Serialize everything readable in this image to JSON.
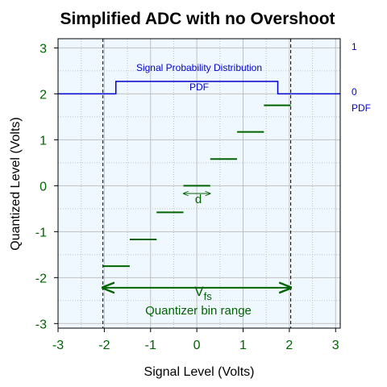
{
  "chart_data": {
    "type": "line",
    "title": "Simplified ADC with no Overshoot",
    "xlabel": "Signal Level (Volts)",
    "ylabel": "Quantized Level (Volts)",
    "xlim": [
      -3.0,
      3.1
    ],
    "ylim": [
      -3.1,
      3.2
    ],
    "xticks": [
      -3,
      -2,
      -1,
      0,
      1,
      2,
      3
    ],
    "yticks": [
      -3,
      -2,
      -1,
      0,
      1,
      2,
      3
    ],
    "grid": true,
    "background_color": "#f0f8ff",
    "quantizer_steps": {
      "color": "#006400",
      "segments": [
        {
          "x": [
            -2.03,
            -1.45
          ],
          "y": -1.75
        },
        {
          "x": [
            -1.45,
            -0.87
          ],
          "y": -1.17
        },
        {
          "x": [
            -0.87,
            -0.29
          ],
          "y": -0.58
        },
        {
          "x": [
            -0.29,
            0.29
          ],
          "y": 0.0
        },
        {
          "x": [
            0.29,
            0.87
          ],
          "y": 0.58
        },
        {
          "x": [
            0.87,
            1.45
          ],
          "y": 1.17
        },
        {
          "x": [
            1.45,
            2.03
          ],
          "y": 1.75
        }
      ]
    },
    "pdf": {
      "color": "#0000cd",
      "label": "PDF",
      "title": "Signal Probability Distribution",
      "baseline_y": 2.0,
      "top_y": 2.27,
      "x": [
        -3.0,
        -1.75,
        -1.75,
        1.75,
        1.75,
        3.1
      ],
      "level": [
        0,
        0,
        1,
        1,
        0,
        0
      ],
      "right_axis": {
        "ticks": [
          {
            "value": 1,
            "label": "1"
          },
          {
            "value": 0,
            "label": "0"
          }
        ],
        "label": "PDF"
      }
    },
    "vertical_dashed_lines": [
      -2.03,
      2.03
    ],
    "annotations": {
      "step_size": {
        "label": "d",
        "x": [
          -0.29,
          0.29
        ],
        "y": -0.17
      },
      "full_scale": {
        "label": "V",
        "subscript": "fs",
        "caption": "Quantizer bin range",
        "x": [
          -2.03,
          2.03
        ],
        "y": -2.22
      }
    }
  }
}
